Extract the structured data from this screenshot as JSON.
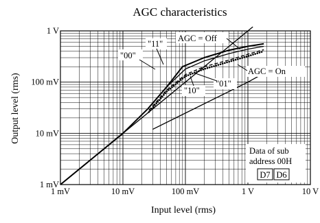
{
  "chart_data": {
    "type": "line",
    "title": "AGC characteristics",
    "xlabel": "Input level (rms)",
    "ylabel": "Output level (rms)",
    "xscale": "log",
    "yscale": "log",
    "xlim": [
      0.001,
      10
    ],
    "ylim": [
      0.001,
      1
    ],
    "grid": true,
    "x_ticks": [
      {
        "value": 0.001,
        "label": "1 mV"
      },
      {
        "value": 0.01,
        "label": "10 mV"
      },
      {
        "value": 0.1,
        "label": "100 mV"
      },
      {
        "value": 1,
        "label": "1 V"
      },
      {
        "value": 10,
        "label": "10 V"
      }
    ],
    "y_ticks": [
      {
        "value": 0.001,
        "label": "1 mV"
      },
      {
        "value": 0.01,
        "label": "10 mV"
      },
      {
        "value": 0.1,
        "label": "100 mV"
      },
      {
        "value": 1,
        "label": "1 V"
      }
    ],
    "series": [
      {
        "name": "",
        "style": "solid",
        "width": 1.3,
        "points": [
          [
            0.001,
            0.001
          ],
          [
            1.2,
            1.2
          ]
        ]
      },
      {
        "name": "",
        "style": "solid",
        "width": 1.3,
        "points": [
          [
            0.03,
            0.012
          ],
          [
            1,
            0.1
          ],
          [
            2,
            0.16
          ]
        ]
      },
      {
        "name": "\"11\"",
        "style": "solid",
        "width": 2.0,
        "points": [
          [
            0.001,
            0.001
          ],
          [
            0.01,
            0.01
          ],
          [
            0.025,
            0.03
          ],
          [
            0.05,
            0.08
          ],
          [
            0.09,
            0.2
          ],
          [
            0.2,
            0.3
          ],
          [
            0.5,
            0.42
          ],
          [
            1.0,
            0.5
          ],
          [
            1.8,
            0.56
          ]
        ]
      },
      {
        "name": "\"00\"",
        "style": "solid",
        "width": 1.3,
        "points": [
          [
            0.025,
            0.03
          ],
          [
            0.05,
            0.08
          ],
          [
            0.1,
            0.18
          ],
          [
            0.2,
            0.26
          ],
          [
            0.5,
            0.36
          ],
          [
            1.0,
            0.44
          ],
          [
            1.8,
            0.5
          ]
        ]
      },
      {
        "name": "\"10\"",
        "style": "dashed",
        "width": 1.4,
        "points": [
          [
            0.026,
            0.028
          ],
          [
            0.05,
            0.07
          ],
          [
            0.1,
            0.14
          ],
          [
            0.2,
            0.2
          ],
          [
            0.5,
            0.27
          ],
          [
            1.0,
            0.35
          ],
          [
            1.8,
            0.43
          ]
        ]
      },
      {
        "name": "\"01\"",
        "style": "dotted",
        "width": 2.6,
        "points": [
          [
            0.026,
            0.026
          ],
          [
            0.05,
            0.065
          ],
          [
            0.1,
            0.13
          ],
          [
            0.2,
            0.18
          ],
          [
            0.5,
            0.25
          ],
          [
            1.0,
            0.32
          ],
          [
            1.8,
            0.4
          ]
        ]
      }
    ],
    "annotations": {
      "agc_off": "AGC = Off",
      "agc_on": "AGC = On",
      "label_11": "\"11\"",
      "label_00": "\"00\"",
      "label_10": "\"10\"",
      "label_01": "\"01\"",
      "data_line1": "Data of sub",
      "data_line2": "address 00H",
      "bit_d7": "D7",
      "bit_d6": "D6"
    }
  }
}
